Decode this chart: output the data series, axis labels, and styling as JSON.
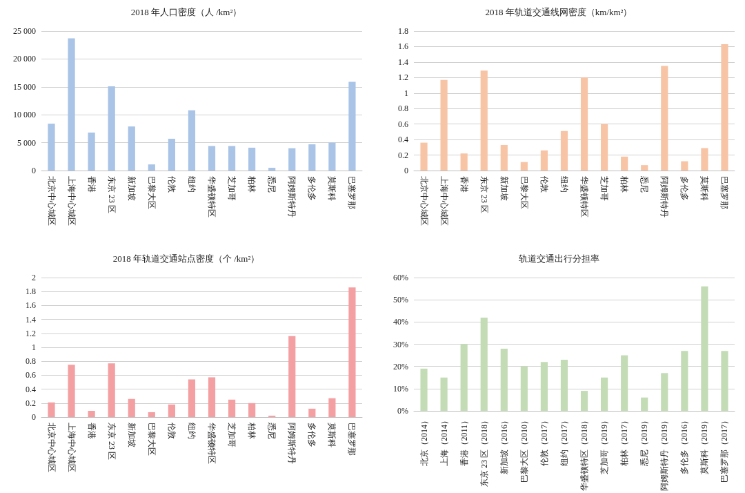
{
  "chart_data": [
    {
      "type": "bar",
      "title": "2018 年人口密度（人 /km²）",
      "categories": [
        "北京中心城区",
        "上海中心城区",
        "香港",
        "东京 23 区",
        "新加坡",
        "巴黎大区",
        "伦敦",
        "纽约",
        "华盛顿特区",
        "芝加哥",
        "柏林",
        "悉尼",
        "阿姆斯特丹",
        "多伦多",
        "莫斯科",
        "巴塞罗那"
      ],
      "values": [
        8400,
        23700,
        6800,
        15100,
        7900,
        1100,
        5700,
        10800,
        4400,
        4400,
        4100,
        500,
        4000,
        4700,
        5000,
        15900
      ],
      "color": "#a9c4e6",
      "ylim": [
        0,
        25000
      ],
      "yticks": [
        0,
        {
          "value": 5000,
          "label": "5 000"
        },
        {
          "value": 10000,
          "label": "10 000"
        },
        {
          "value": 15000,
          "label": "15 000"
        },
        {
          "value": 20000,
          "label": "20 000"
        },
        {
          "value": 25000,
          "label": "25 000"
        }
      ],
      "grid": "y"
    },
    {
      "type": "bar",
      "title": "2018 年轨道交通线网密度（km/km²）",
      "categories": [
        "北京中心城区",
        "上海中心城区",
        "香港",
        "东京 23 区",
        "新加坡",
        "巴黎大区",
        "伦敦",
        "纽约",
        "华盛顿特区",
        "芝加哥",
        "柏林",
        "悉尼",
        "阿姆斯特丹",
        "多伦多",
        "莫斯科",
        "巴塞罗那"
      ],
      "values": [
        0.36,
        1.17,
        0.22,
        1.29,
        0.33,
        0.11,
        0.26,
        0.51,
        1.2,
        0.6,
        0.18,
        0.07,
        1.35,
        0.12,
        0.29,
        1.63
      ],
      "color": "#f7c4a5",
      "ylim": [
        0,
        1.8
      ],
      "yticks": [
        0,
        0.2,
        0.4,
        0.6,
        0.8,
        1,
        1.2,
        1.4,
        1.6,
        1.8
      ],
      "grid": "y"
    },
    {
      "type": "bar",
      "title": "2018 年轨道交通站点密度（个 /km²）",
      "categories": [
        "北京中心城区",
        "上海中心城区",
        "香港",
        "东京 23 区",
        "新加坡",
        "巴黎大区",
        "伦敦",
        "纽约",
        "华盛顿特区",
        "芝加哥",
        "柏林",
        "悉尼",
        "阿姆斯特丹",
        "多伦多",
        "莫斯科",
        "巴塞罗那"
      ],
      "values": [
        0.21,
        0.75,
        0.09,
        0.77,
        0.26,
        0.07,
        0.18,
        0.54,
        0.57,
        0.25,
        0.2,
        0.02,
        1.16,
        0.12,
        0.27,
        1.86
      ],
      "color": "#f4a0a3",
      "ylim": [
        0,
        2
      ],
      "yticks": [
        0,
        0.2,
        0.4,
        0.6,
        0.8,
        1,
        1.2,
        1.4,
        1.6,
        1.8,
        2
      ],
      "grid": "y"
    },
    {
      "type": "bar",
      "title": "轨道交通出行分担率",
      "categories": [
        "北京（2014）",
        "上海（2014）",
        "香港（2011）",
        "东京 23 区（2018）",
        "新加坡（2016）",
        "巴黎大区（2010）",
        "伦敦（2017）",
        "纽约（2017）",
        "华盛顿特区（2018）",
        "芝加哥（2019）",
        "柏林（2017）",
        "悉尼（2019）",
        "阿姆斯特丹（2019）",
        "多伦多（2016）",
        "莫斯科（2019）",
        "巴塞罗那（2017）"
      ],
      "values": [
        19,
        15,
        30,
        42,
        28,
        20,
        22,
        23,
        9,
        15,
        25,
        6,
        17,
        27,
        56,
        27
      ],
      "color": "#c3dcb6",
      "ylim": [
        0,
        60
      ],
      "yticks": [
        {
          "value": 0,
          "label": "0%"
        },
        {
          "value": 10,
          "label": "10%"
        },
        {
          "value": 20,
          "label": "20%"
        },
        {
          "value": 30,
          "label": "30%"
        },
        {
          "value": 40,
          "label": "40%"
        },
        {
          "value": 50,
          "label": "50%"
        },
        {
          "value": 60,
          "label": "60%"
        }
      ],
      "grid": "y"
    }
  ]
}
